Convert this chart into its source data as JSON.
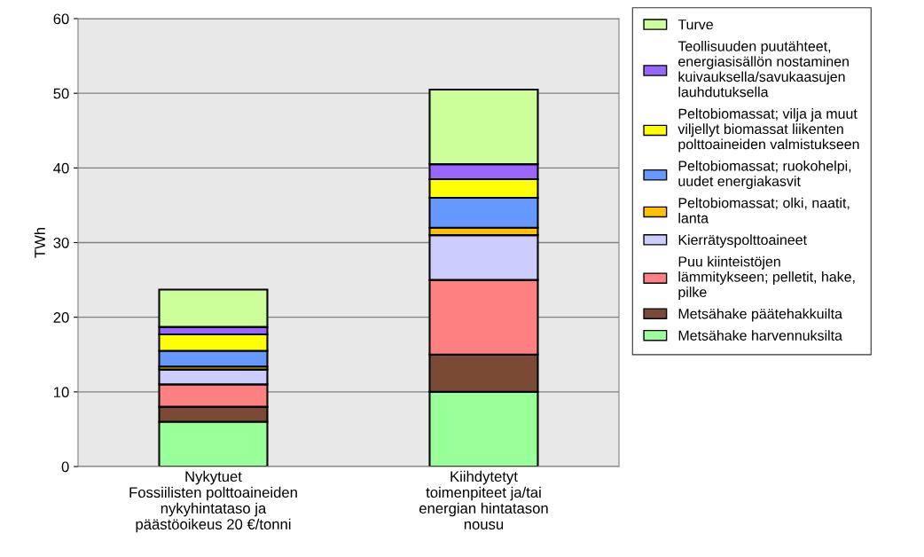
{
  "chart_data": {
    "type": "bar",
    "stacked": true,
    "ylabel": "TWh",
    "categories": [
      "Nykytuet\nFossiilisten polttoaineiden\nnykyhintataso ja\npäästöoikeus 20 €/tonni",
      "Kiihdytetyt\ntoimenpiteet ja/tai\nenergian hintatason\nnousu"
    ],
    "ylim": [
      0,
      60
    ],
    "yticks": [
      0,
      10,
      20,
      30,
      40,
      50,
      60
    ],
    "grid": "y",
    "legend": "right",
    "series": [
      {
        "name": "Metsähake harvennuksilta",
        "color": "#99ff99",
        "values": [
          6,
          10
        ]
      },
      {
        "name": "Metsähake päätehakkuilta",
        "color": "#7a4a35",
        "values": [
          2,
          5
        ]
      },
      {
        "name": "Puu kiinteistöjen\nlämmitykseen; pelletit, hake,\npilke",
        "color": "#ff8080",
        "values": [
          3,
          10
        ]
      },
      {
        "name": "Kierrätyspolttoaineet",
        "color": "#ccccff",
        "values": [
          2,
          6
        ]
      },
      {
        "name": "Peltobiomassat; olki, naatit,\nlanta",
        "color": "#ffc000",
        "values": [
          0.4,
          1
        ]
      },
      {
        "name": "Peltobiomassat; ruokohelpi,\nuudet energiakasvit",
        "color": "#6699ff",
        "values": [
          2.1,
          4
        ]
      },
      {
        "name": "Peltobiomassat; vilja ja muut\nviljellyt biomassat liikenten\npolttoaineiden valmistukseen",
        "color": "#ffff00",
        "values": [
          2.2,
          2.5
        ]
      },
      {
        "name": "Teollisuuden puutähteet,\nenergiasisällön nostaminen\nkuivauksella/savukaasujen\nlauhdutuksella",
        "color": "#9966ff",
        "values": [
          1,
          2
        ]
      },
      {
        "name": "Turve",
        "color": "#ccff99",
        "values": [
          5,
          10
        ]
      }
    ]
  }
}
